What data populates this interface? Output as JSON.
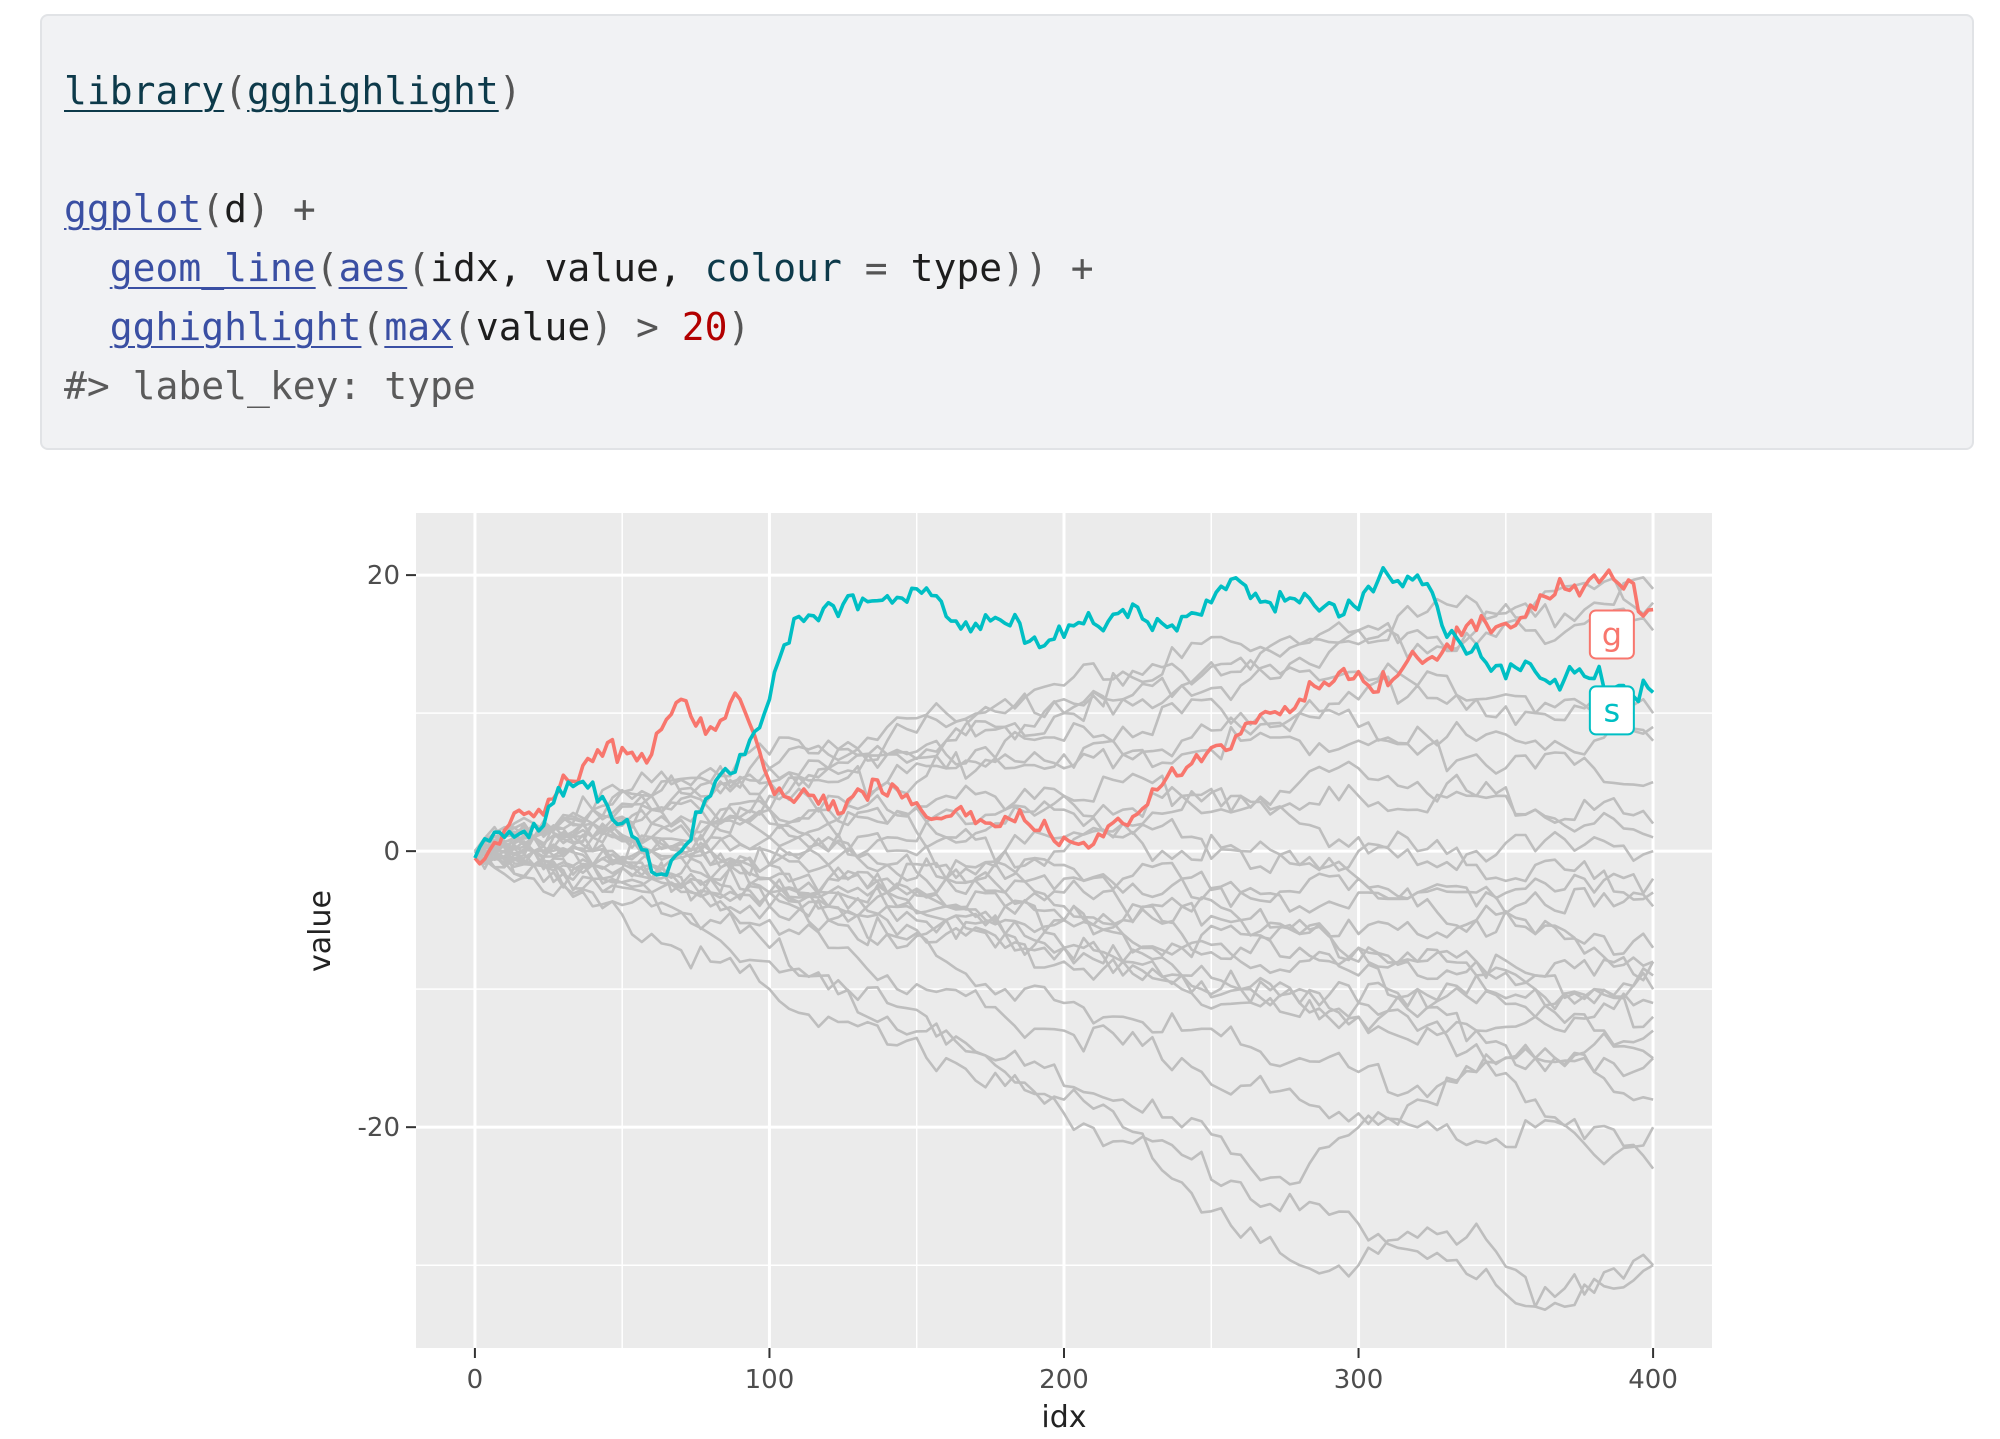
{
  "code": {
    "line1": {
      "fn": "library",
      "open": "(",
      "arg": "gghighlight",
      "close": ")"
    },
    "line3": {
      "fn": "ggplot",
      "open": "(",
      "arg": "d",
      "close": ")",
      "op": " +"
    },
    "line4": {
      "indent": "  ",
      "fn": "geom_line",
      "open": "(",
      "fn2": "aes",
      "open2": "(",
      "args": "idx, value, ",
      "kw": "colour",
      "eq": " = ",
      "val": "type",
      "close": "))",
      "op": " +"
    },
    "line5": {
      "indent": "  ",
      "fn": "gghighlight",
      "open": "(",
      "fn2": "max",
      "open2": "(",
      "arg": "value",
      "close1": ")",
      "cmp": " > ",
      "num": "20",
      "close2": ")"
    },
    "output": "#> label_key: type"
  },
  "chart_data": {
    "type": "line",
    "xlabel": "idx",
    "ylabel": "value",
    "xlim": [
      -20,
      420
    ],
    "ylim": [
      -36,
      24.5
    ],
    "x_ticks": [
      0,
      100,
      200,
      300,
      400
    ],
    "x_tick_labels": [
      "0",
      "100",
      "200",
      "300",
      "400"
    ],
    "y_ticks": [
      -20,
      0,
      20
    ],
    "y_tick_labels": [
      "-20",
      "0",
      "20"
    ],
    "grid": true,
    "colors": {
      "panel": "#ebebeb",
      "grid": "#ffffff",
      "background_series": "#bebebe",
      "g": "#f8766d",
      "s": "#00bfc4"
    },
    "highlighted_series": [
      {
        "name": "g",
        "color": "#f8766d",
        "x": [
          0,
          10,
          20,
          30,
          40,
          50,
          60,
          70,
          80,
          90,
          100,
          110,
          120,
          130,
          140,
          150,
          160,
          170,
          180,
          190,
          200,
          210,
          220,
          230,
          240,
          250,
          260,
          270,
          280,
          290,
          300,
          310,
          320,
          330,
          340,
          350,
          360,
          370,
          380,
          390,
          400
        ],
        "values": [
          -0.5,
          1.5,
          2.5,
          5.5,
          6.5,
          7.5,
          7,
          11,
          9,
          11,
          5,
          4,
          3,
          4.5,
          4,
          3.5,
          2.5,
          2,
          2.5,
          1.5,
          1,
          0.5,
          2,
          4.5,
          5.5,
          7.5,
          8.5,
          10,
          11,
          12,
          13,
          12,
          14,
          15,
          16,
          16.5,
          17.5,
          19,
          20,
          19,
          17.5
        ]
      },
      {
        "name": "s",
        "color": "#00bfc4",
        "x": [
          0,
          10,
          20,
          30,
          40,
          50,
          60,
          70,
          80,
          90,
          100,
          110,
          120,
          130,
          140,
          150,
          160,
          170,
          180,
          190,
          200,
          210,
          220,
          230,
          240,
          250,
          260,
          270,
          280,
          290,
          300,
          310,
          320,
          330,
          340,
          350,
          360,
          370,
          380,
          390,
          400
        ],
        "values": [
          -0.5,
          1,
          2,
          4,
          5,
          2,
          -1.5,
          0,
          4,
          7,
          11,
          17,
          18,
          17.5,
          18.5,
          19,
          17,
          16.5,
          16.5,
          15.5,
          15.5,
          16.5,
          17.5,
          16,
          17,
          18,
          19.5,
          18,
          18,
          18,
          17.5,
          20,
          20,
          15.5,
          15,
          12.5,
          13,
          12.5,
          12.5,
          12,
          11.5
        ]
      }
    ],
    "background_series_x": [
      0,
      20,
      40,
      60,
      80,
      100,
      120,
      140,
      160,
      180,
      200,
      220,
      240,
      260,
      280,
      300,
      320,
      340,
      360,
      380,
      400
    ],
    "background_series": [
      [
        0,
        -2,
        -4,
        -6,
        -8,
        -10,
        -12,
        -14,
        -15,
        -17,
        -19,
        -21,
        -22,
        -24,
        -26,
        -27,
        -29,
        -31,
        -33,
        -32,
        -30
      ],
      [
        0,
        -1,
        -3,
        -4,
        -6,
        -8,
        -10,
        -12,
        -14,
        -16,
        -18,
        -20,
        -24,
        -28,
        -30,
        -30,
        -28,
        -27,
        -33,
        -31,
        -30
      ],
      [
        0,
        -1,
        -2,
        -3,
        -5,
        -7,
        -9,
        -11,
        -13,
        -15,
        -17,
        -18,
        -20,
        -22,
        -24,
        -20,
        -18,
        -16,
        -18,
        -20,
        -23
      ],
      [
        0,
        0,
        -1,
        -2,
        -4,
        -5,
        -7,
        -9,
        -10,
        -12,
        -13,
        -14,
        -15,
        -17,
        -18,
        -19,
        -20,
        -21,
        -20,
        -22,
        -20
      ],
      [
        0,
        -1,
        -1,
        -2,
        -3,
        -4,
        -5,
        -6,
        -8,
        -10,
        -11,
        -12,
        -13,
        -14,
        -15,
        -16,
        -17,
        -16,
        -15,
        -14,
        -15
      ],
      [
        0,
        0,
        -1,
        -1,
        -2,
        -3,
        -4,
        -5,
        -6,
        -7,
        -8,
        -9,
        -10,
        -11,
        -12,
        -11,
        -12,
        -13,
        -12,
        -13,
        -13
      ],
      [
        0,
        0,
        -1,
        -2,
        -2,
        -3,
        -4,
        -4,
        -5,
        -6,
        -7,
        -8,
        -9,
        -10,
        -10,
        -11,
        -10,
        -9,
        -10,
        -10,
        -10
      ],
      [
        0,
        1,
        0,
        0,
        -1,
        -2,
        -2,
        -3,
        -4,
        -4,
        -5,
        -5,
        -6,
        -7,
        -6,
        -7,
        -8,
        -8,
        -9,
        -9,
        -8
      ],
      [
        0,
        0,
        1,
        0,
        0,
        -1,
        -1,
        -2,
        -2,
        -3,
        -3,
        -4,
        -4,
        -5,
        -5,
        -6,
        -6,
        -5,
        -6,
        -6,
        -7
      ],
      [
        0,
        1,
        1,
        1,
        0,
        0,
        -1,
        -1,
        -2,
        -2,
        -1,
        -2,
        -2,
        -3,
        -3,
        -2,
        -3,
        -3,
        -2,
        -3,
        -2
      ],
      [
        0,
        1,
        2,
        2,
        1,
        1,
        0,
        1,
        1,
        0,
        0,
        1,
        0,
        0,
        -1,
        0,
        -1,
        0,
        0,
        1,
        0
      ],
      [
        0,
        1,
        1,
        2,
        2,
        3,
        3,
        2,
        3,
        3,
        4,
        3,
        4,
        4,
        3,
        4,
        3,
        4,
        3,
        3,
        2
      ],
      [
        0,
        1,
        2,
        3,
        3,
        4,
        5,
        5,
        6,
        6,
        7,
        7,
        7,
        8,
        8,
        8,
        7,
        7,
        6,
        6,
        5
      ],
      [
        0,
        2,
        3,
        4,
        4,
        5,
        6,
        7,
        7,
        8,
        8,
        9,
        10,
        10,
        10,
        9,
        9,
        8,
        8,
        8,
        8
      ],
      [
        0,
        1,
        3,
        4,
        5,
        6,
        6,
        7,
        8,
        9,
        10,
        11,
        12,
        12,
        13,
        13,
        12,
        11,
        10,
        10,
        9
      ],
      [
        0,
        2,
        3,
        5,
        6,
        7,
        8,
        9,
        10,
        11,
        12,
        13,
        14,
        15,
        15,
        16,
        16,
        15,
        16,
        17,
        16
      ],
      [
        0,
        1,
        2,
        3,
        4,
        5,
        6,
        7,
        8,
        10,
        11,
        12,
        13,
        14,
        15,
        16,
        17,
        18,
        18,
        19,
        18
      ],
      [
        0,
        2,
        3,
        4,
        5,
        6,
        7,
        8,
        9,
        9,
        10,
        11,
        12,
        13,
        14,
        15,
        15,
        16,
        17,
        18,
        19
      ],
      [
        0,
        -1,
        0,
        -1,
        -2,
        -1,
        -2,
        -3,
        -2,
        -3,
        -4,
        -5,
        -4,
        -5,
        -6,
        -7,
        -8,
        -9,
        -10,
        -11,
        -12
      ],
      [
        0,
        -1,
        -2,
        -2,
        -3,
        -3,
        -4,
        -3,
        -4,
        -5,
        -5,
        -6,
        -7,
        -6,
        -7,
        -8,
        -9,
        -8,
        -9,
        -10,
        -9
      ],
      [
        0,
        0,
        1,
        1,
        2,
        1,
        2,
        2,
        1,
        2,
        3,
        2,
        1,
        0,
        -1,
        -2,
        -3,
        -4,
        -3,
        -4,
        -4
      ],
      [
        0,
        -1,
        -1,
        0,
        0,
        -1,
        0,
        -1,
        -2,
        -1,
        -2,
        -3,
        -2,
        -3,
        -4,
        -3,
        -4,
        -5,
        -6,
        -7,
        -8
      ],
      [
        0,
        1,
        0,
        1,
        1,
        2,
        1,
        0,
        -1,
        0,
        1,
        2,
        3,
        4,
        5,
        6,
        5,
        4,
        3,
        2,
        1
      ],
      [
        0,
        -1,
        -2,
        -3,
        -3,
        -4,
        -5,
        -6,
        -5,
        -6,
        -7,
        -8,
        -9,
        -10,
        -11,
        -12,
        -13,
        -14,
        -15,
        -16,
        -18
      ],
      [
        0,
        0,
        -1,
        -1,
        -2,
        -2,
        -3,
        -3,
        -4,
        -4,
        -5,
        -6,
        -7,
        -8,
        -8,
        -9,
        -10,
        -11,
        -12,
        -12,
        -11
      ],
      [
        0,
        1,
        2,
        1,
        2,
        3,
        2,
        3,
        4,
        3,
        4,
        5,
        4,
        3,
        2,
        1,
        0,
        -1,
        -1,
        -2,
        -3
      ],
      [
        0,
        1,
        2,
        3,
        2,
        3,
        4,
        5,
        6,
        7,
        6,
        7,
        8,
        9,
        10,
        11,
        12,
        11,
        10,
        11,
        10
      ],
      [
        0,
        0,
        -1,
        0,
        -1,
        -2,
        -3,
        -4,
        -5,
        -6,
        -7,
        -8,
        -9,
        -10,
        -11,
        -12,
        -14,
        -13,
        -15,
        -16,
        -15
      ]
    ]
  }
}
